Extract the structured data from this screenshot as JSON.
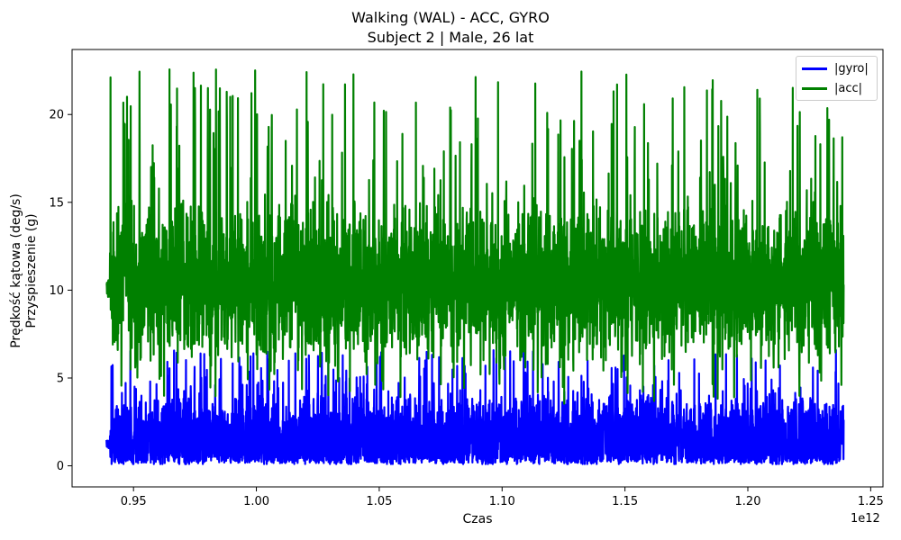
{
  "chart_data": {
    "type": "line",
    "title": "Walking (WAL) - ACC, GYRO",
    "subtitle": "Subject 2 | Male, 26 lat",
    "xlabel": "Czas",
    "xlabel_offset": "1e12",
    "ylabel_lines": [
      "Prędkość kątowa (deg/s)",
      "Przyspieszenie (g)"
    ],
    "xlim": [
      0.925,
      1.255
    ],
    "ylim": [
      -1.2,
      23.7
    ],
    "x_range_data": [
      0.939,
      1.239
    ],
    "x_ticks": [
      0.95,
      1.0,
      1.05,
      1.1,
      1.15,
      1.2,
      1.25
    ],
    "x_tick_labels": [
      "0.95",
      "1.00",
      "1.05",
      "1.10",
      "1.15",
      "1.20",
      "1.25"
    ],
    "y_ticks": [
      0,
      5,
      10,
      15,
      20
    ],
    "y_tick_labels": [
      "0",
      "5",
      "10",
      "15",
      "20"
    ],
    "grid": false,
    "legend_position": "top-right",
    "series": [
      {
        "name": "|gyro|",
        "color": "#0000ff",
        "baseline": 1.5,
        "typical_range": [
          0.2,
          4.2
        ],
        "max": 6.6,
        "min": 0.1
      },
      {
        "name": "|acc|",
        "color": "#008000",
        "baseline": 10.5,
        "typical_range": [
          7.5,
          15.0
        ],
        "max": 22.6,
        "min": 2.3
      }
    ]
  }
}
